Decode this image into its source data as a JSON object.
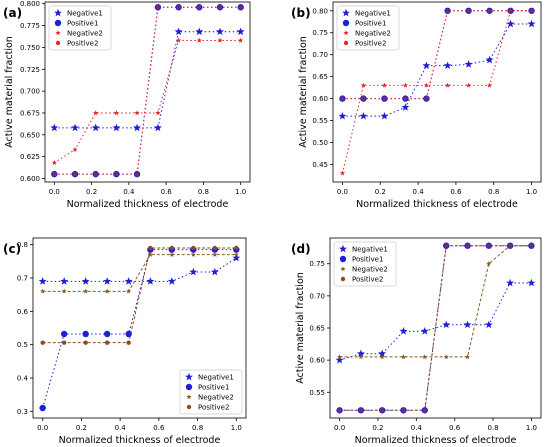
{
  "colors": {
    "negative1": "#1f1fd6",
    "positive1": "#1f1fd6",
    "negative2": "#e8242a",
    "positive2": "#e8242a",
    "overlap_positive": "#7a2a6a",
    "negative2_d": "#8a5a2a",
    "positive2_d": "#8a4a2a",
    "axis": "#000000"
  },
  "chart_data": [
    {
      "type": "line",
      "panel_label": "(a)",
      "xlabel": "Normalized thickness of electrode",
      "ylabel": "Active material fraction",
      "xlim": [
        -0.05,
        1.05
      ],
      "ylim": [
        0.596,
        0.802
      ],
      "xticks": [
        "0.0",
        "0.2",
        "0.4",
        "0.6",
        "0.8",
        "1.0"
      ],
      "yticks": [
        "0.600",
        "0.625",
        "0.650",
        "0.675",
        "0.700",
        "0.725",
        "0.750",
        "0.775",
        "0.800"
      ],
      "legend_position": "top-left",
      "x": [
        0.0,
        0.111,
        0.222,
        0.333,
        0.444,
        0.556,
        0.667,
        0.778,
        0.889,
        1.0
      ],
      "series": [
        {
          "name": "Negative1",
          "values": [
            0.658,
            0.658,
            0.658,
            0.658,
            0.658,
            0.658,
            0.768,
            0.768,
            0.768,
            0.768
          ]
        },
        {
          "name": "Positive1",
          "values": [
            0.605,
            0.605,
            0.605,
            0.605,
            0.605,
            0.796,
            0.796,
            0.796,
            0.796,
            0.796
          ]
        },
        {
          "name": "Negative2",
          "values": [
            0.618,
            0.633,
            0.675,
            0.675,
            0.675,
            0.675,
            0.758,
            0.758,
            0.758,
            0.758
          ]
        },
        {
          "name": "Positive2",
          "values": [
            0.605,
            0.605,
            0.605,
            0.605,
            0.605,
            0.796,
            0.796,
            0.796,
            0.796,
            0.796
          ]
        }
      ]
    },
    {
      "type": "line",
      "panel_label": "(b)",
      "xlabel": "Normalized thickness of electrode",
      "ylabel": "Active material fraction",
      "xlim": [
        -0.05,
        1.05
      ],
      "ylim": [
        0.41,
        0.82
      ],
      "xticks": [
        "0.0",
        "0.2",
        "0.4",
        "0.6",
        "0.8",
        "1.0"
      ],
      "yticks": [
        "0.45",
        "0.50",
        "0.55",
        "0.60",
        "0.65",
        "0.70",
        "0.75",
        "0.80"
      ],
      "legend_position": "top-left",
      "x": [
        0.0,
        0.111,
        0.222,
        0.333,
        0.444,
        0.556,
        0.667,
        0.778,
        0.889,
        1.0
      ],
      "series": [
        {
          "name": "Negative1",
          "values": [
            0.56,
            0.56,
            0.56,
            0.58,
            0.675,
            0.675,
            0.678,
            0.688,
            0.77,
            0.77
          ]
        },
        {
          "name": "Positive1",
          "values": [
            0.6,
            0.6,
            0.6,
            0.6,
            0.6,
            0.8,
            0.8,
            0.8,
            0.8,
            0.8
          ]
        },
        {
          "name": "Negative2",
          "values": [
            0.43,
            0.63,
            0.63,
            0.63,
            0.63,
            0.63,
            0.63,
            0.63,
            0.8,
            0.8
          ]
        },
        {
          "name": "Positive2",
          "values": [
            0.6,
            0.6,
            0.6,
            0.6,
            0.6,
            0.8,
            0.8,
            0.8,
            0.8,
            0.8
          ]
        }
      ]
    },
    {
      "type": "line",
      "panel_label": "(c)",
      "xlabel": "Normalized thickness of electrode",
      "ylabel": "Active material fraction",
      "xlim": [
        -0.05,
        1.05
      ],
      "ylim": [
        0.28,
        0.82
      ],
      "xticks": [
        "0.0",
        "0.2",
        "0.4",
        "0.6",
        "0.8",
        "1.0"
      ],
      "yticks": [
        "0.3",
        "0.4",
        "0.5",
        "0.6",
        "0.7",
        "0.8"
      ],
      "legend_position": "bottom-right",
      "x": [
        0.0,
        0.111,
        0.222,
        0.333,
        0.444,
        0.556,
        0.667,
        0.778,
        0.889,
        1.0
      ],
      "series": [
        {
          "name": "Negative1",
          "values": [
            0.69,
            0.69,
            0.69,
            0.69,
            0.69,
            0.69,
            0.69,
            0.718,
            0.718,
            0.76
          ]
        },
        {
          "name": "Positive1",
          "values": [
            0.31,
            0.532,
            0.532,
            0.532,
            0.532,
            0.785,
            0.785,
            0.785,
            0.785,
            0.785
          ]
        },
        {
          "name": "Negative2",
          "values": [
            0.66,
            0.66,
            0.66,
            0.66,
            0.66,
            0.77,
            0.77,
            0.77,
            0.77,
            0.77
          ]
        },
        {
          "name": "Positive2",
          "values": [
            0.506,
            0.506,
            0.506,
            0.506,
            0.506,
            0.79,
            0.79,
            0.79,
            0.79,
            0.79
          ]
        }
      ]
    },
    {
      "type": "line",
      "panel_label": "(d)",
      "xlabel": "Normalized thickness of electrode",
      "ylabel": "Active material fraction",
      "xlim": [
        -0.05,
        1.05
      ],
      "ylim": [
        0.51,
        0.79
      ],
      "xticks": [
        "0.0",
        "0.2",
        "0.4",
        "0.6",
        "0.8",
        "1.0"
      ],
      "yticks": [
        "0.55",
        "0.60",
        "0.65",
        "0.70",
        "0.75"
      ],
      "legend_position": "top-left",
      "x": [
        0.0,
        0.111,
        0.222,
        0.333,
        0.444,
        0.556,
        0.667,
        0.778,
        0.889,
        1.0
      ],
      "series": [
        {
          "name": "Negative1",
          "values": [
            0.6,
            0.61,
            0.61,
            0.645,
            0.645,
            0.655,
            0.655,
            0.655,
            0.72,
            0.72
          ]
        },
        {
          "name": "Positive1",
          "values": [
            0.522,
            0.522,
            0.522,
            0.522,
            0.522,
            0.778,
            0.778,
            0.778,
            0.778,
            0.778
          ]
        },
        {
          "name": "Negative2",
          "values": [
            0.605,
            0.605,
            0.605,
            0.605,
            0.605,
            0.605,
            0.605,
            0.75,
            0.778,
            0.778
          ]
        },
        {
          "name": "Positive2",
          "values": [
            0.522,
            0.522,
            0.522,
            0.522,
            0.522,
            0.778,
            0.778,
            0.778,
            0.778,
            0.778
          ]
        }
      ]
    }
  ]
}
